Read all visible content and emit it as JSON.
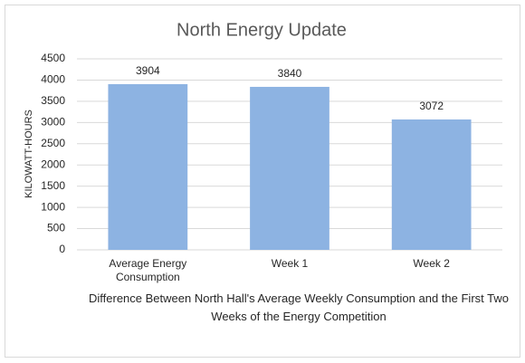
{
  "chart_data": {
    "type": "bar",
    "title": "North Energy Update",
    "categories": [
      "Average Energy Consumption",
      "Week 1",
      "Week 2"
    ],
    "values": [
      3904,
      3840,
      3072
    ],
    "color": "#8db3e2",
    "y_label": "KILOWATT-HOURS",
    "x_label": "Difference Between North Hall's Average Weekly Consumption and the First Two Weeks of the Energy Competition",
    "ylim": [
      0,
      4500
    ],
    "yticks": [
      0,
      500,
      1000,
      1500,
      2000,
      2500,
      3000,
      3500,
      4000,
      4500
    ],
    "grid": true
  }
}
